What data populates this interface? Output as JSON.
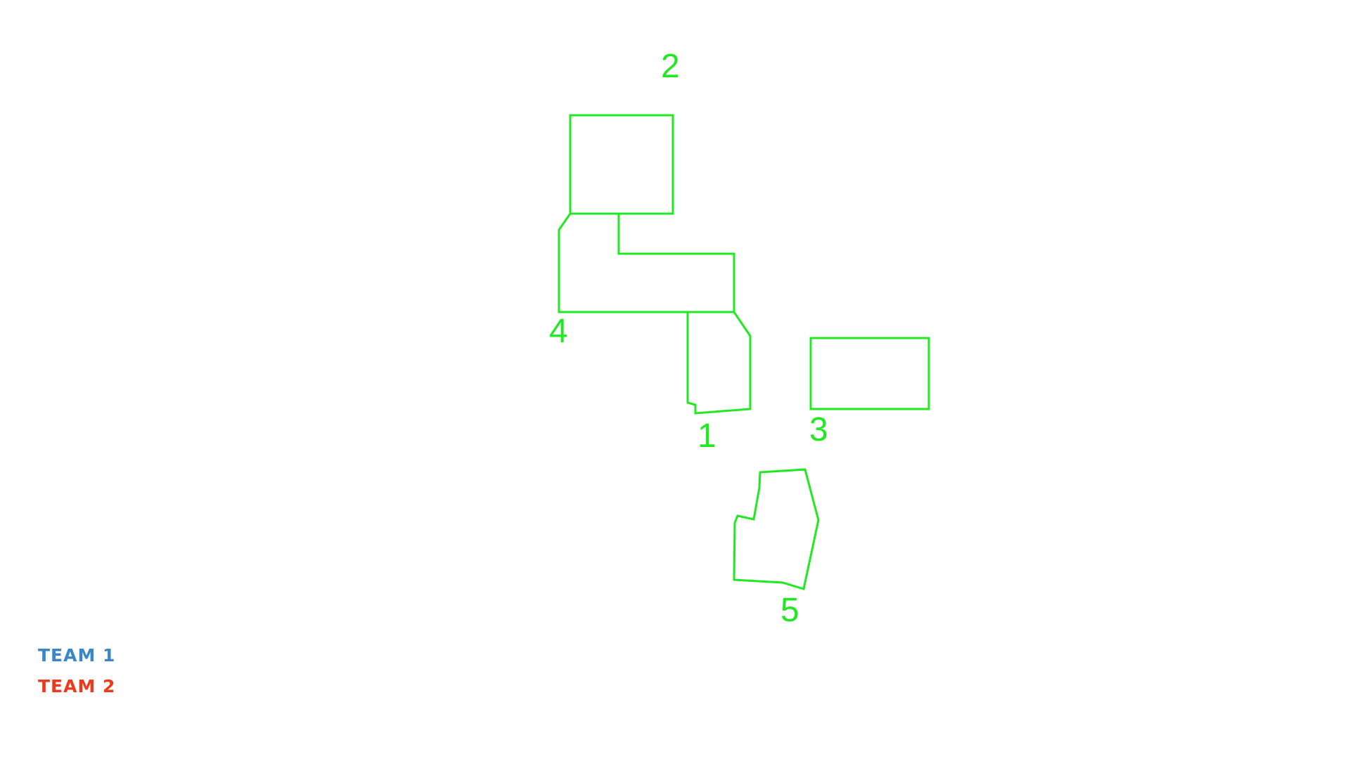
{
  "colors": {
    "zone": "#22e822",
    "team_1": "#3a86c8",
    "team_2": "#ee3a1c",
    "background": "#ffffff"
  },
  "zones": [
    {
      "id": "1",
      "label": "1"
    },
    {
      "id": "2",
      "label": "2"
    },
    {
      "id": "3",
      "label": "3"
    },
    {
      "id": "4",
      "label": "4"
    },
    {
      "id": "5",
      "label": "5"
    }
  ],
  "legend": {
    "team_1": "TEAM 1",
    "team_2": "TEAM 2"
  }
}
